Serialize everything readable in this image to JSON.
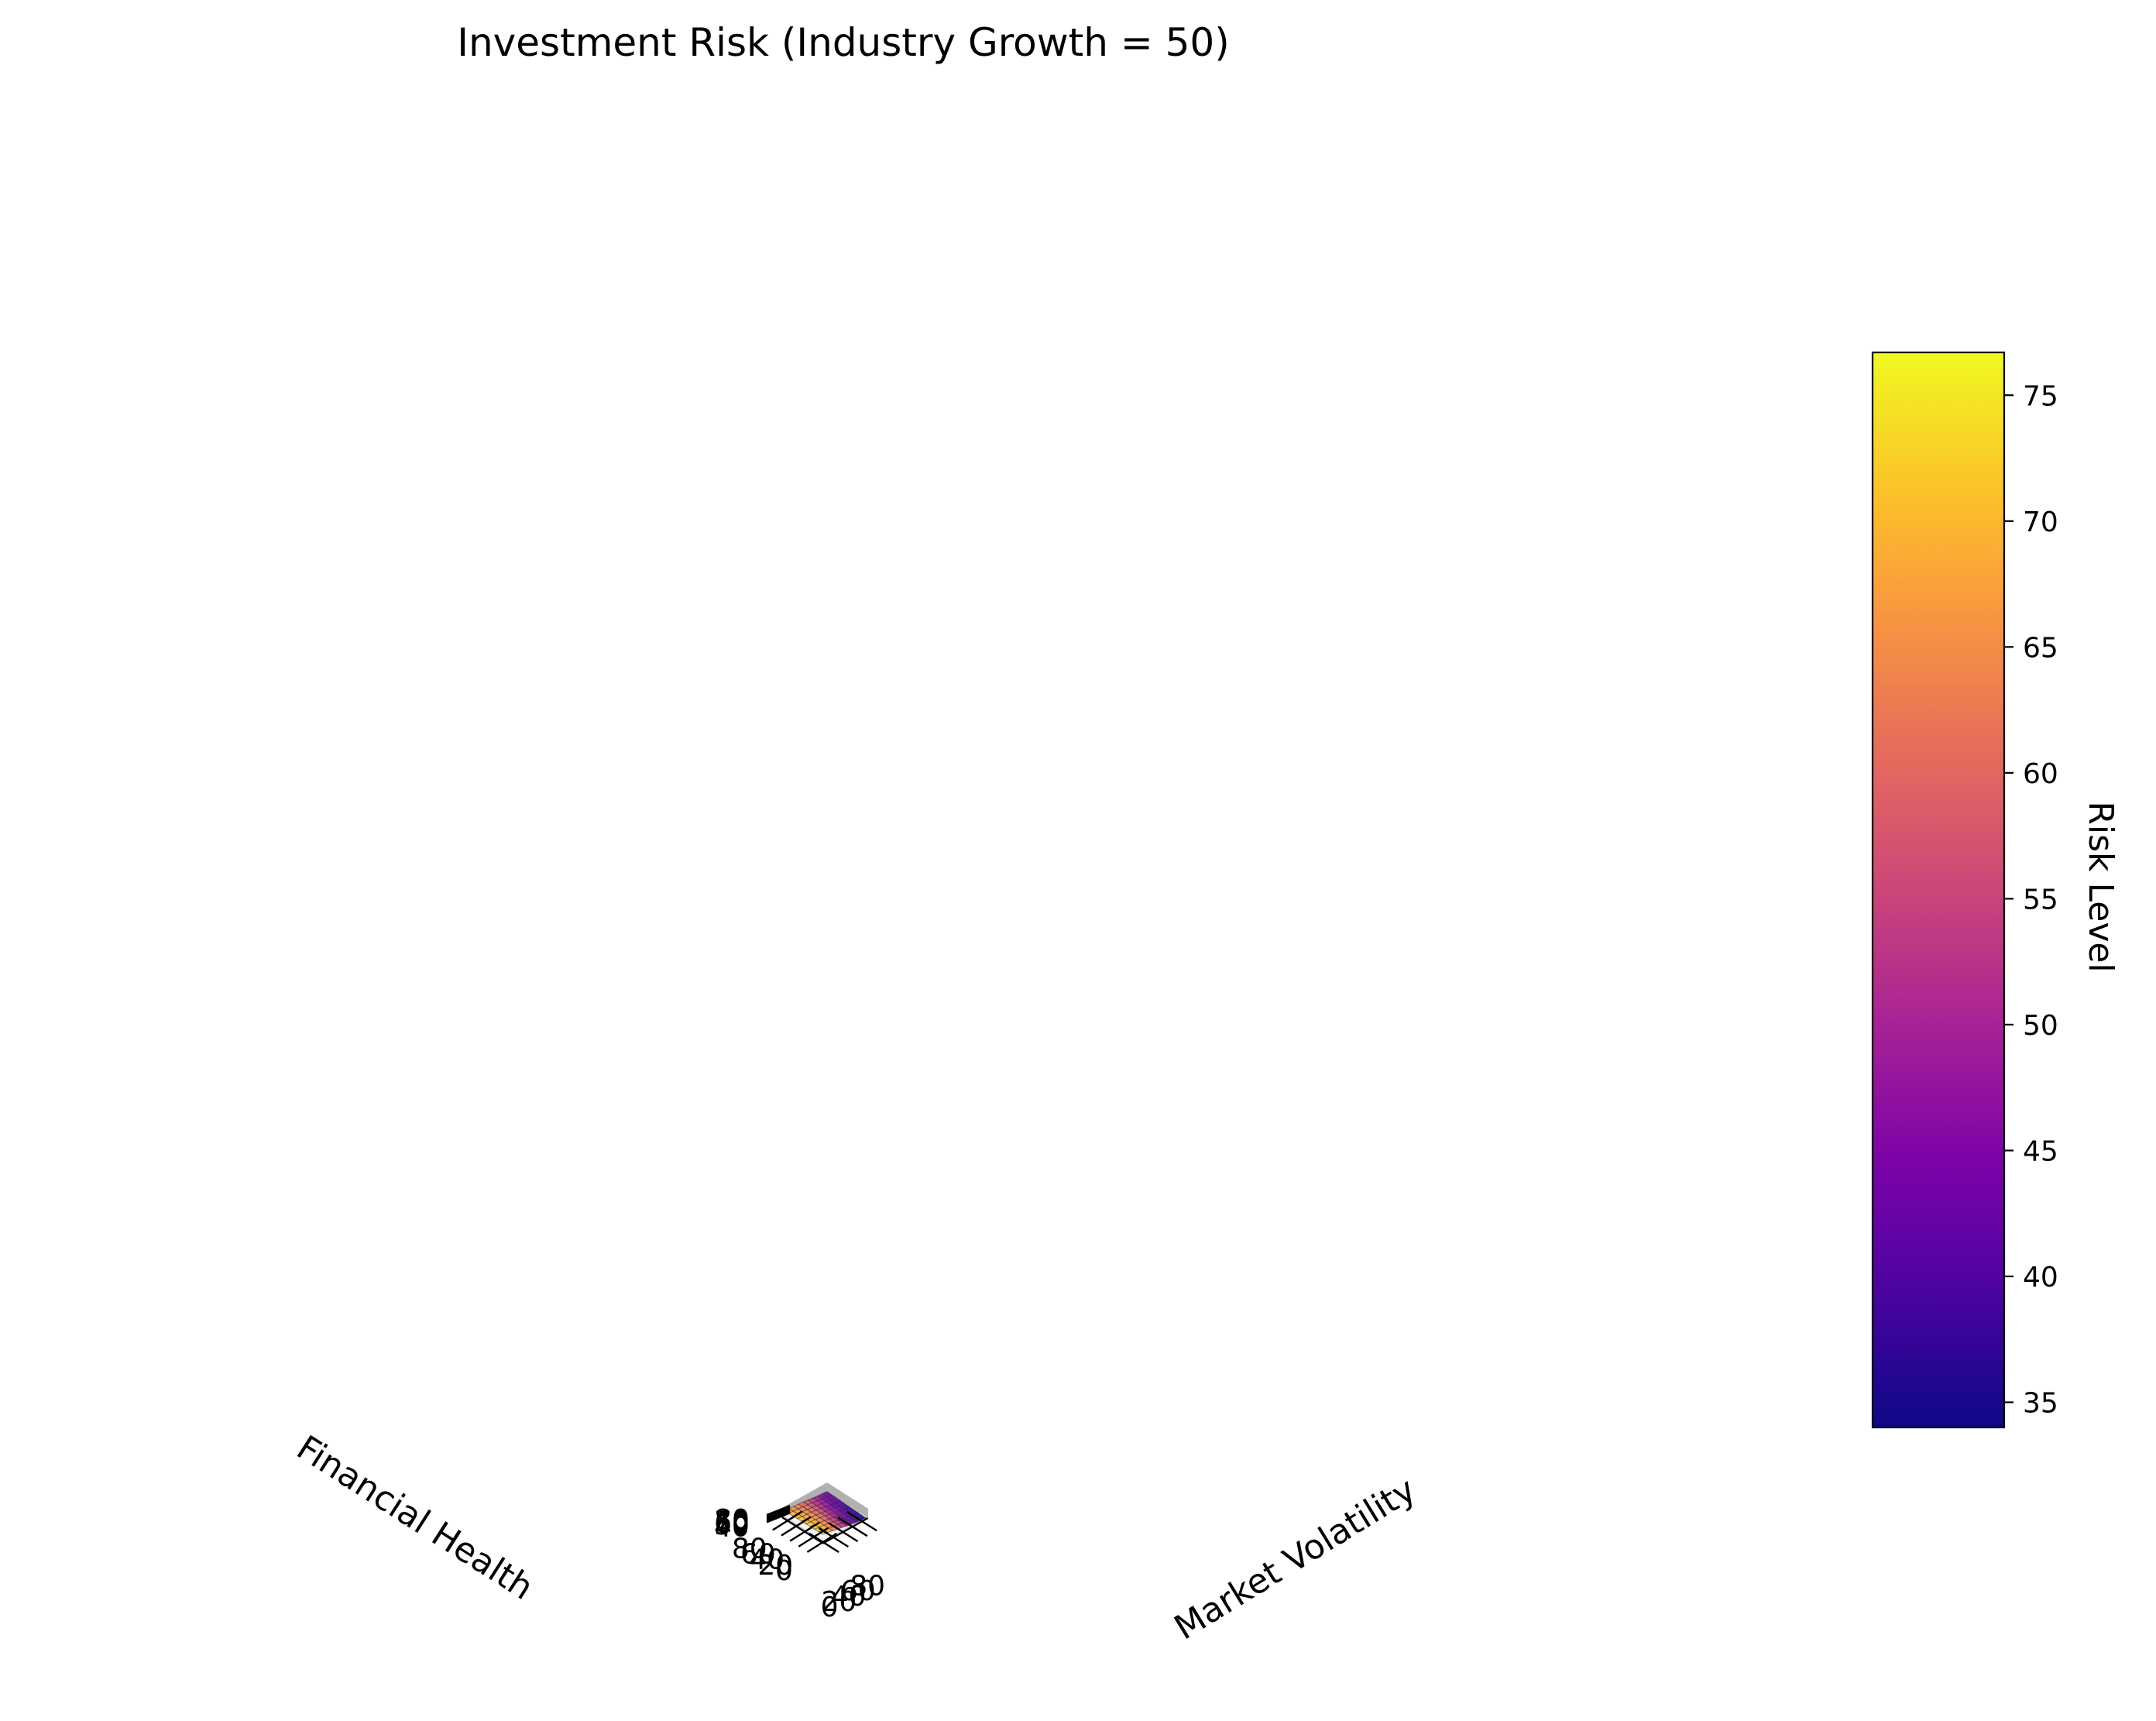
{
  "chart_data": {
    "type": "surface3d",
    "title": "Investment Risk (Industry Growth = 50)",
    "xlabel": "Market Volatility",
    "ylabel": "Financial Health",
    "zlabel": "",
    "colorbar_label": "Risk Level",
    "colormap": "plasma",
    "xticks": [
      0,
      20,
      40,
      60,
      80
    ],
    "yticks": [
      0,
      20,
      40,
      60,
      80
    ],
    "zticks": [
      40,
      50,
      60,
      70,
      80
    ],
    "cbar_ticks": [
      35,
      40,
      45,
      50,
      55,
      60,
      65,
      70,
      75
    ],
    "clim": [
      34,
      76.7
    ],
    "x": [
      0,
      10,
      20,
      30,
      40,
      50,
      60,
      70,
      80,
      90
    ],
    "y": [
      0,
      10,
      20,
      30,
      40,
      50,
      60,
      70,
      80,
      90
    ],
    "z": [
      [
        76,
        72,
        66,
        60,
        55,
        48,
        44,
        39,
        36,
        34
      ],
      [
        75,
        72,
        66,
        61,
        56,
        50,
        45,
        40,
        37,
        35
      ],
      [
        74,
        71,
        67,
        62,
        56,
        50,
        45,
        41,
        38,
        36
      ],
      [
        74,
        71,
        67,
        62,
        57,
        51,
        47,
        42,
        39,
        37
      ],
      [
        73,
        70,
        67,
        63,
        58,
        52,
        48,
        44,
        40,
        38
      ],
      [
        73,
        70,
        66,
        63,
        58,
        53,
        48,
        44,
        41,
        39
      ],
      [
        72,
        69,
        66,
        63,
        59,
        54,
        49,
        45,
        42,
        40
      ],
      [
        71,
        69,
        66,
        62,
        59,
        54,
        50,
        46,
        43,
        41
      ],
      [
        70,
        68,
        65,
        62,
        59,
        55,
        51,
        47,
        44,
        42
      ],
      [
        68,
        66,
        64,
        62,
        59,
        55,
        51,
        48,
        45,
        43
      ]
    ]
  }
}
